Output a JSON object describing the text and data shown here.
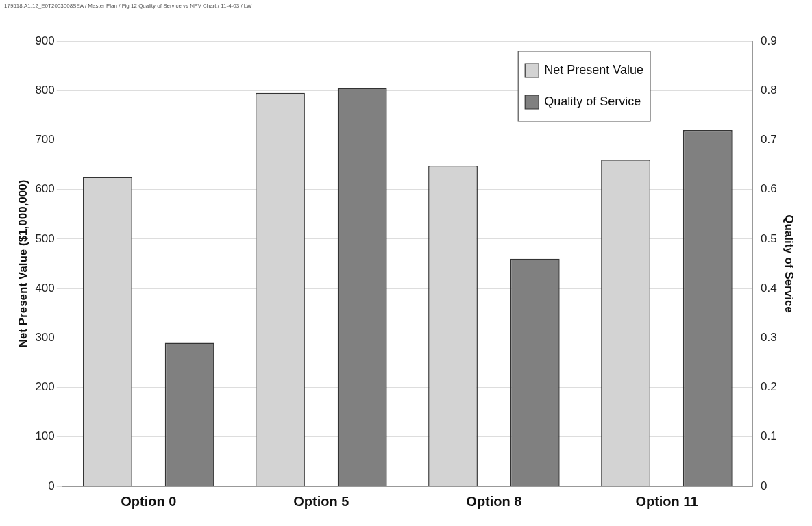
{
  "chart_data": {
    "type": "bar",
    "categories": [
      "Option 0",
      "Option 5",
      "Option 8",
      "Option 11"
    ],
    "series": [
      {
        "name": "Net Present Value",
        "color": "#d3d3d3",
        "values": [
          625,
          795,
          648,
          660
        ]
      },
      {
        "name": "Quality of Service",
        "color": "#808080",
        "values": [
          0.29,
          0.805,
          0.46,
          0.72
        ],
        "axis": "y2"
      }
    ],
    "ylabel": "Net Present Value ($1,000,000)",
    "y2label": "Quality of Service",
    "ylim": [
      0,
      900
    ],
    "yticks": [
      0,
      100,
      200,
      300,
      400,
      500,
      600,
      700,
      800,
      900
    ],
    "y2lim": [
      0,
      0.9
    ],
    "y2ticks": [
      0,
      0.1,
      0.2,
      0.3,
      0.4,
      0.5,
      0.6,
      0.7,
      0.8,
      0.9
    ],
    "grid": "y",
    "legend": "top right",
    "annotations": [
      "179518.A1.12_E0T2003008SEA / Master Plan / Fig 12 Quality of Service vs NPV Chart / 11-4-03 / LW"
    ]
  }
}
